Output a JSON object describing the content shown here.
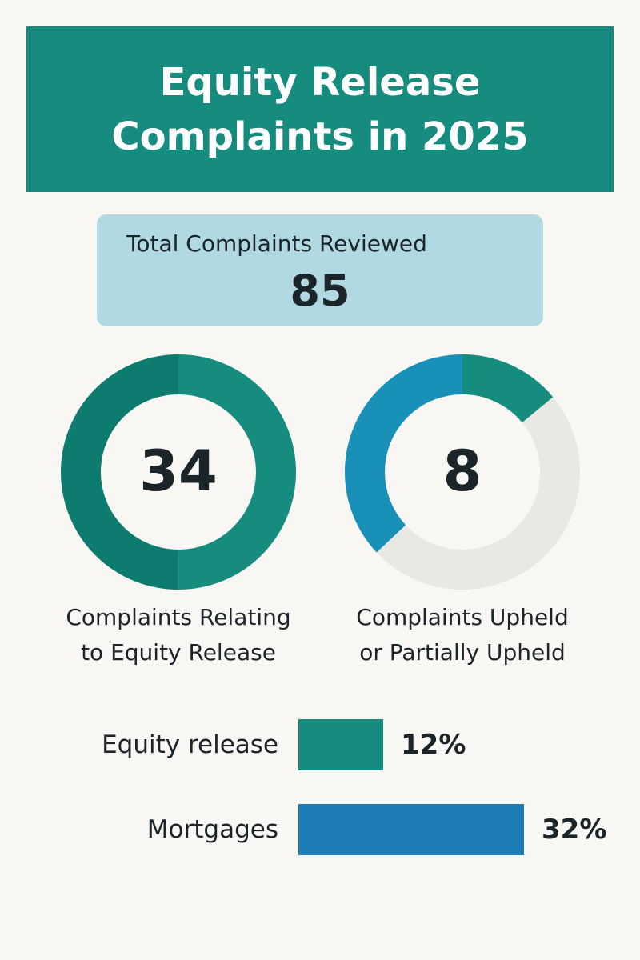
{
  "title_lines": [
    "Equity Release",
    "Complaints in 2025"
  ],
  "total": {
    "label": "Total Complaints Reviewed",
    "value": "85"
  },
  "colors": {
    "teal": "#158c7d",
    "teal_dark": "#0d7b6d",
    "blue": "#1f7db5",
    "cyan_blue": "#1990b8",
    "light_blue": "#b0d9e1",
    "track_gray": "#e8e8e4"
  },
  "chart_data": [
    {
      "type": "donut",
      "value": 34,
      "value_label": "34",
      "label_lines": [
        "Complaints Relating",
        "to Equity Release"
      ],
      "segments": [
        {
          "fraction": 0.5,
          "color": "#158c7d"
        },
        {
          "fraction": 0.5,
          "color": "#0d7b6d"
        }
      ]
    },
    {
      "type": "donut",
      "value": 8,
      "value_label": "8",
      "label_lines": [
        "Complaints Upheld",
        "or Partially Upheld"
      ],
      "segments": [
        {
          "fraction": 0.14,
          "color": "#158c7d"
        },
        {
          "fraction": 0.49,
          "color": "#e8e8e4"
        },
        {
          "fraction": 0.37,
          "color": "#1990b8"
        }
      ]
    },
    {
      "type": "bar",
      "orientation": "horizontal",
      "categories": [
        "Equity release",
        "Mortgages"
      ],
      "values": [
        12,
        32
      ],
      "value_labels": [
        "12%",
        "32%"
      ],
      "unit": "%",
      "colors": [
        "#158c7d",
        "#1f7db5"
      ],
      "xlim": [
        0,
        34
      ]
    }
  ]
}
